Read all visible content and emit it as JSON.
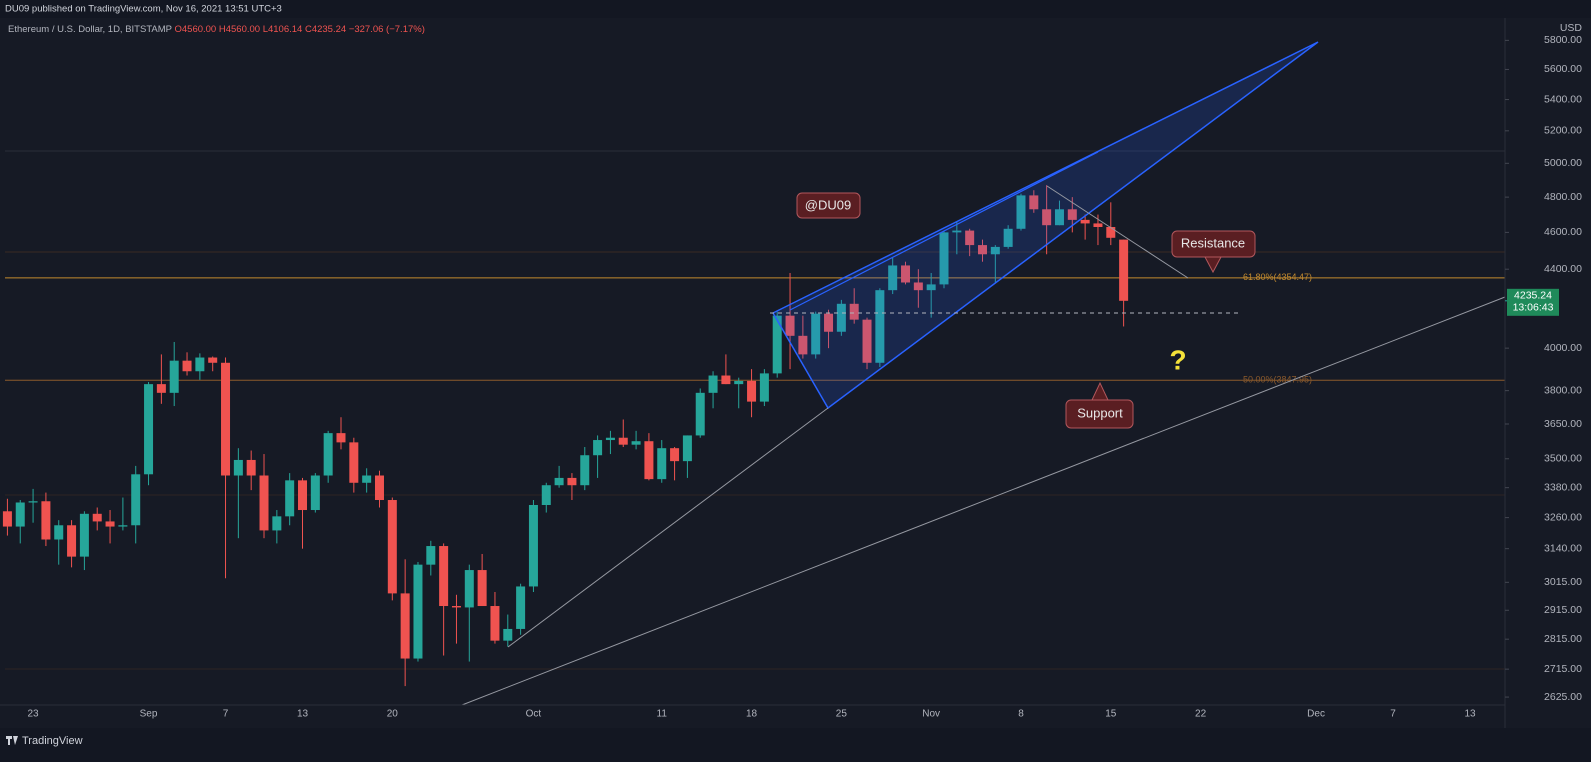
{
  "header": {
    "publisher": "DU09 published on TradingView.com, Nov 16, 2021 13:51 UTC+3",
    "symbol": "Ethereum / U.S. Dollar, 1D, BITSTAMP",
    "ohlc": [
      "O4560.00",
      "H4560.00",
      "L4106.14",
      "C4235.24",
      "−327.06 (−7.17%)"
    ]
  },
  "footer": "TradingView",
  "chart_data": {
    "type": "candlestick",
    "log_scale": true,
    "grid": false,
    "currency": "USD",
    "up_color": "#26a69a",
    "down_color": "#ef5350",
    "categories": [
      null,
      null,
      "23",
      null,
      null,
      null,
      null,
      null,
      null,
      null,
      null,
      "Sep",
      null,
      null,
      null,
      null,
      null,
      "7",
      null,
      null,
      null,
      null,
      null,
      "13",
      null,
      null,
      null,
      null,
      null,
      null,
      "20",
      null,
      null,
      null,
      null,
      null,
      null,
      null,
      null,
      null,
      null,
      "Oct",
      null,
      null,
      null,
      null,
      null,
      null,
      null,
      null,
      null,
      "11",
      null,
      null,
      null,
      null,
      null,
      null,
      "18",
      null,
      null,
      null,
      null,
      null,
      null,
      "25",
      null,
      null,
      null,
      null,
      null,
      null,
      "Nov",
      null,
      null,
      null,
      null,
      null,
      null,
      "8",
      null,
      null,
      null,
      null,
      null,
      null,
      "15",
      null,
      null,
      null,
      null,
      null,
      null,
      "22",
      null,
      null,
      null,
      null,
      null,
      null,
      null,
      null,
      "Dec",
      null,
      null,
      null,
      null,
      null,
      "7",
      null,
      null,
      null,
      null,
      null,
      "13",
      null,
      null
    ],
    "open": [
      3285,
      3225,
      3320,
      3325,
      3175,
      3230,
      3110,
      3275,
      3245,
      3225,
      3230,
      3435,
      3830,
      3790,
      3940,
      3890,
      3955,
      3930,
      3430,
      3495,
      3430,
      3210,
      3265,
      3410,
      3290,
      3430,
      3610,
      3570,
      3400,
      3430,
      3330,
      2975,
      2750,
      3080,
      3150,
      2930,
      2925,
      3060,
      2930,
      2810,
      2850,
      3000,
      3310,
      3390,
      3420,
      3390,
      3515,
      3580,
      3590,
      3560,
      3575,
      3415,
      3545,
      3490,
      3600,
      3790,
      3870,
      3830,
      3845,
      3750,
      3880,
      4160,
      4060,
      3970,
      4170,
      4080,
      4220,
      4140,
      3930,
      4290,
      4420,
      4330,
      4290,
      4320,
      4600,
      4610,
      4530,
      4480,
      4520,
      4620,
      4810,
      4730,
      4640,
      4730,
      4670,
      4650,
      4630,
      4560,
      null,
      null,
      null,
      null,
      null,
      null,
      null,
      null,
      null,
      null,
      null,
      null,
      null,
      null,
      null,
      null,
      null,
      null,
      null,
      null,
      null,
      null,
      null,
      null,
      null,
      null,
      null,
      null,
      null
    ],
    "high": [
      3335,
      3330,
      3375,
      3360,
      3250,
      3250,
      3285,
      3300,
      3290,
      3340,
      3470,
      3840,
      3970,
      4030,
      3980,
      3975,
      3960,
      3955,
      3545,
      3535,
      3520,
      3290,
      3440,
      3420,
      3440,
      3620,
      3680,
      3590,
      3460,
      3450,
      3340,
      3100,
      3090,
      3170,
      3160,
      2970,
      3080,
      3120,
      2980,
      2900,
      3010,
      3330,
      3400,
      3470,
      3440,
      3550,
      3600,
      3620,
      3670,
      3620,
      3610,
      3580,
      3550,
      3600,
      3810,
      3890,
      3970,
      3860,
      3900,
      3900,
      4180,
      4380,
      4160,
      4180,
      4190,
      4240,
      4300,
      4150,
      4300,
      4460,
      4440,
      4400,
      4380,
      4610,
      4660,
      4620,
      4560,
      4530,
      4640,
      4820,
      4840,
      4870,
      4780,
      4800,
      4700,
      4700,
      4770,
      4560,
      null,
      null,
      null,
      null,
      null,
      null,
      null,
      null,
      null,
      null,
      null,
      null,
      null,
      null,
      null,
      null,
      null,
      null,
      null,
      null,
      null,
      null,
      null,
      null,
      null,
      null,
      null,
      null,
      null
    ],
    "low": [
      3190,
      3160,
      3240,
      3150,
      3080,
      3070,
      3060,
      3210,
      3160,
      3210,
      3160,
      3390,
      3740,
      3730,
      3870,
      3850,
      3890,
      3030,
      3180,
      3370,
      3180,
      3160,
      3230,
      3140,
      3280,
      3400,
      3540,
      3360,
      3360,
      3300,
      2950,
      2660,
      2740,
      3040,
      2760,
      2800,
      2740,
      2930,
      2800,
      2790,
      2830,
      2980,
      3280,
      3380,
      3330,
      3370,
      3420,
      3520,
      3550,
      3540,
      3410,
      3400,
      3410,
      3420,
      3590,
      3720,
      3830,
      3720,
      3680,
      3730,
      3860,
      3900,
      3950,
      3950,
      4000,
      4060,
      4120,
      3900,
      3910,
      4270,
      4320,
      4200,
      4150,
      4300,
      4480,
      4470,
      4440,
      4330,
      4510,
      4610,
      4710,
      4480,
      4640,
      4600,
      4560,
      4530,
      4530,
      4106.14,
      null,
      null,
      null,
      null,
      null,
      null,
      null,
      null,
      null,
      null,
      null,
      null,
      null,
      null,
      null,
      null,
      null,
      null,
      null,
      null,
      null,
      null,
      null,
      null,
      null,
      null,
      null,
      null,
      null
    ],
    "close": [
      3225,
      3320,
      3325,
      3175,
      3230,
      3110,
      3275,
      3245,
      3225,
      3230,
      3435,
      3830,
      3790,
      3940,
      3890,
      3955,
      3930,
      3430,
      3495,
      3430,
      3210,
      3265,
      3410,
      3290,
      3430,
      3610,
      3570,
      3400,
      3430,
      3330,
      2975,
      2750,
      3080,
      3150,
      2930,
      2925,
      3060,
      2930,
      2810,
      2850,
      3000,
      3310,
      3390,
      3420,
      3390,
      3515,
      3580,
      3590,
      3560,
      3575,
      3415,
      3545,
      3490,
      3600,
      3790,
      3870,
      3830,
      3845,
      3750,
      3880,
      4160,
      4060,
      3970,
      4170,
      4080,
      4220,
      4140,
      3930,
      4290,
      4420,
      4330,
      4290,
      4320,
      4600,
      4610,
      4530,
      4480,
      4520,
      4620,
      4810,
      4730,
      4640,
      4730,
      4670,
      4650,
      4630,
      4570,
      4235.24,
      null,
      null,
      null,
      null,
      null,
      null,
      null,
      null,
      null,
      null,
      null,
      null,
      null,
      null,
      null,
      null,
      null,
      null,
      null,
      null,
      null,
      null,
      null,
      null,
      null,
      null,
      null,
      null,
      null
    ],
    "ylim": [
      2600,
      5930
    ],
    "yticks": [
      {
        "value": 2625,
        "label": "2625.00"
      },
      {
        "value": 2715,
        "label": "2715.00"
      },
      {
        "value": 2815,
        "label": "2815.00"
      },
      {
        "value": 2915,
        "label": "2915.00"
      },
      {
        "value": 3015,
        "label": "3015.00"
      },
      {
        "value": 3140,
        "label": "3140.00"
      },
      {
        "value": 3260,
        "label": "3260.00"
      },
      {
        "value": 3380,
        "label": "3380.00"
      },
      {
        "value": 3500,
        "label": "3500.00"
      },
      {
        "value": 3650,
        "label": "3650.00"
      },
      {
        "value": 3800,
        "label": "3800.00"
      },
      {
        "value": 4000,
        "label": "4000.00"
      },
      {
        "value": 4400,
        "label": "4400.00"
      },
      {
        "value": 4600,
        "label": "4600.00"
      },
      {
        "value": 4800,
        "label": "4800.00"
      },
      {
        "value": 5000,
        "label": "5000.00"
      },
      {
        "value": 5200,
        "label": "5200.00"
      },
      {
        "value": 5400,
        "label": "5400.00"
      },
      {
        "value": 5600,
        "label": "5600.00"
      },
      {
        "value": 5800,
        "label": "5800.00"
      }
    ],
    "levels": [
      {
        "value": 4354.47,
        "label": "61.80%(4354.47)",
        "color": "#c28a2f"
      },
      {
        "value": 3847.95,
        "label": "50.00%(3847.95)",
        "color": "#8b5a2c"
      }
    ],
    "last_price": {
      "value": 4235.24,
      "label": "4235.24"
    },
    "countdown": "13:06:43",
    "annotations": [
      "@DU09",
      "Resistance",
      "Support",
      "?"
    ]
  }
}
